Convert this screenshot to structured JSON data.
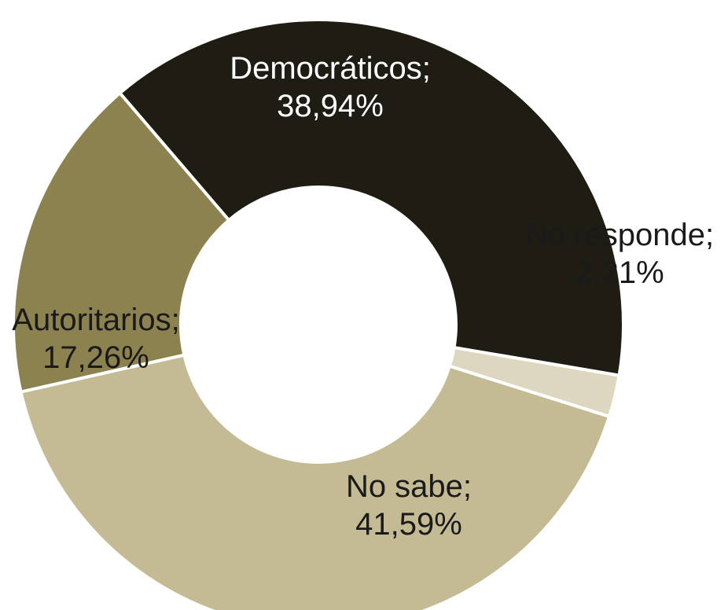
{
  "chart_data": {
    "type": "pie",
    "donut": true,
    "title": "",
    "slices": [
      {
        "label": "Democráticos;",
        "value_text": "38,94%",
        "value": 38.94,
        "color": "#1f1c13",
        "text_color": "#ffffff"
      },
      {
        "label": "No responde;",
        "value_text": "2,21%",
        "value": 2.21,
        "color": "#ddd7bf",
        "text_color": "#1a1a1a"
      },
      {
        "label": "No sabe;",
        "value_text": "41,59%",
        "value": 41.59,
        "color": "#c4bb94",
        "text_color": "#1a1a1a"
      },
      {
        "label": "Autoritarios;",
        "value_text": "17,26%",
        "value": 17.26,
        "color": "#8c8250",
        "text_color": "#1a1a1a"
      }
    ]
  }
}
